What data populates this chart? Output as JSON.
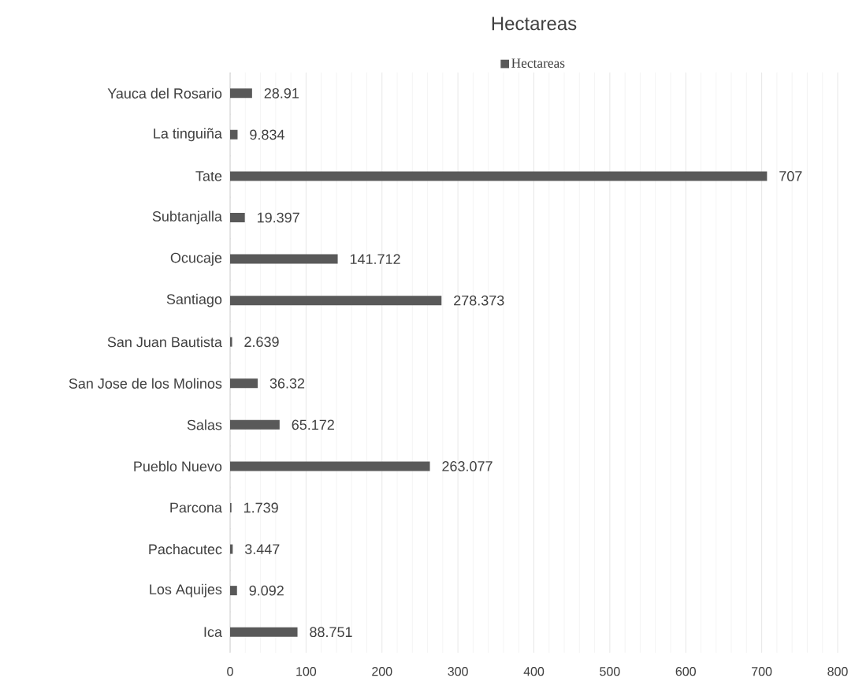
{
  "chart_data": {
    "type": "bar",
    "orientation": "horizontal",
    "title": "Hectareas",
    "categories": [
      "Yauca del Rosario",
      "La tinguiña",
      "Tate",
      "Subtanjalla",
      "Ocucaje",
      "Santiago",
      "San Juan Bautista",
      "San Jose de los Molinos",
      "Salas",
      "Pueblo Nuevo",
      "Parcona",
      "Pachacutec",
      "Los Aquijes",
      "Ica"
    ],
    "series": [
      {
        "name": "Hectareas",
        "color": "#595959",
        "values": [
          28.91,
          9.834,
          707,
          19.397,
          141.712,
          278.373,
          2.639,
          36.32,
          65.172,
          263.077,
          1.739,
          3.447,
          9.092,
          88.751
        ]
      }
    ],
    "xlim": [
      0,
      800
    ],
    "xticks": [
      0,
      100,
      200,
      300,
      400,
      500,
      600,
      700,
      800
    ],
    "grid": "x",
    "legend": "top",
    "data_labels": true
  }
}
